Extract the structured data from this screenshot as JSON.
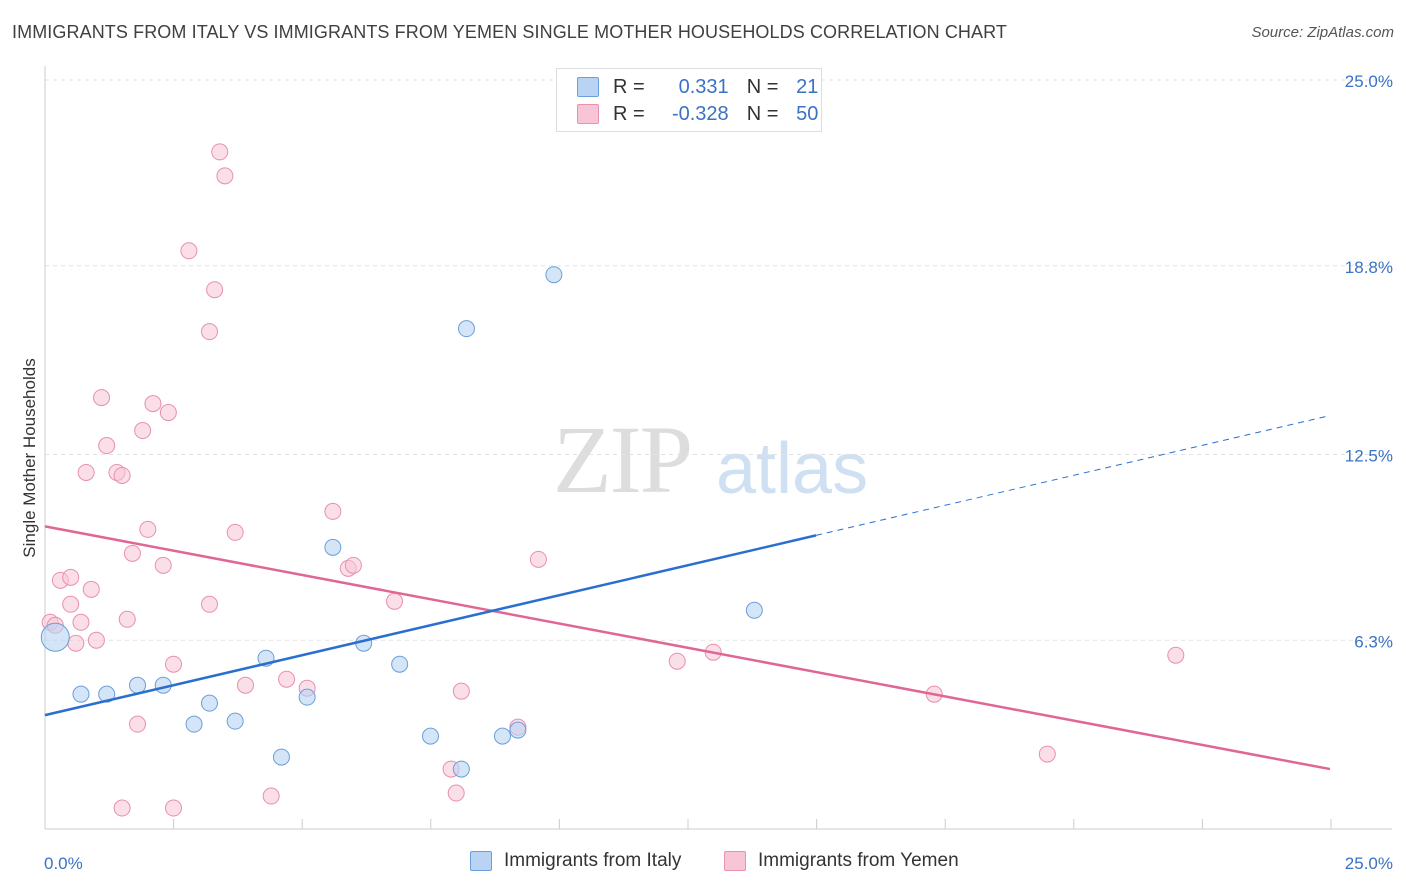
{
  "header": {
    "title": "IMMIGRANTS FROM ITALY VS IMMIGRANTS FROM YEMEN SINGLE MOTHER HOUSEHOLDS CORRELATION CHART",
    "source": "Source: ZipAtlas.com"
  },
  "watermark": {
    "zip": "ZIP",
    "atlas": "atlas"
  },
  "legend": {
    "italy": {
      "r_label": "R =",
      "r_value": "0.331",
      "n_label": "N =",
      "n_value": "21"
    },
    "yemen": {
      "r_label": "R =",
      "r_value": "-0.328",
      "n_label": "N =",
      "n_value": "50"
    }
  },
  "colors": {
    "italy_fill": "#b8d3f3",
    "italy_stroke": "#6a9fd8",
    "italy_line": "#2a6fd0",
    "yemen_fill": "#f7c5d5",
    "yemen_stroke": "#e890ac",
    "yemen_line": "#e06696",
    "axis_text": "#3a72c4",
    "grid": "#e2e2e2"
  },
  "chart_data": {
    "type": "scatter",
    "title": "IMMIGRANTS FROM ITALY VS IMMIGRANTS FROM YEMEN SINGLE MOTHER HOUSEHOLDS CORRELATION CHART",
    "xlabel": "",
    "ylabel": "Single Mother Households",
    "xlim": [
      0,
      25
    ],
    "ylim": [
      0,
      25
    ],
    "x_tick_labels": [
      "0.0%",
      "25.0%"
    ],
    "y_ticks": [
      6.3,
      12.5,
      18.8,
      25.0
    ],
    "y_tick_labels": [
      "6.3%",
      "12.5%",
      "18.8%",
      "25.0%"
    ],
    "grid": "horizontal dashed",
    "legend_position": "bottom",
    "series": [
      {
        "name": "Immigrants from Italy",
        "points": [
          [
            0.2,
            6.4
          ],
          [
            0.7,
            4.5
          ],
          [
            1.2,
            4.5
          ],
          [
            1.8,
            4.8
          ],
          [
            2.3,
            4.8
          ],
          [
            2.9,
            3.5
          ],
          [
            3.2,
            4.2
          ],
          [
            3.7,
            3.6
          ],
          [
            4.3,
            5.7
          ],
          [
            4.6,
            2.4
          ],
          [
            5.1,
            4.4
          ],
          [
            5.6,
            9.4
          ],
          [
            6.2,
            6.2
          ],
          [
            6.9,
            5.5
          ],
          [
            7.5,
            3.1
          ],
          [
            8.1,
            2.0
          ],
          [
            8.2,
            16.7
          ],
          [
            8.9,
            3.1
          ],
          [
            9.2,
            3.3
          ],
          [
            9.9,
            18.5
          ],
          [
            13.8,
            7.3
          ]
        ],
        "trend": {
          "x": [
            0,
            15,
            25
          ],
          "y": [
            3.8,
            9.8,
            13.8
          ],
          "solid_until": 15
        }
      },
      {
        "name": "Immigrants from Yemen",
        "points": [
          [
            0.1,
            6.9
          ],
          [
            0.2,
            6.8
          ],
          [
            0.3,
            8.3
          ],
          [
            0.5,
            8.4
          ],
          [
            0.5,
            7.5
          ],
          [
            0.6,
            6.2
          ],
          [
            0.7,
            6.9
          ],
          [
            0.8,
            11.9
          ],
          [
            0.9,
            8.0
          ],
          [
            1.0,
            6.3
          ],
          [
            1.1,
            14.4
          ],
          [
            1.2,
            12.8
          ],
          [
            1.4,
            11.9
          ],
          [
            1.5,
            11.8
          ],
          [
            1.6,
            7.0
          ],
          [
            1.7,
            9.2
          ],
          [
            1.8,
            3.5
          ],
          [
            1.9,
            13.3
          ],
          [
            2.0,
            10.0
          ],
          [
            2.1,
            14.2
          ],
          [
            2.3,
            8.8
          ],
          [
            2.4,
            13.9
          ],
          [
            2.5,
            5.5
          ],
          [
            3.2,
            16.6
          ],
          [
            3.2,
            7.5
          ],
          [
            3.3,
            18.0
          ],
          [
            3.4,
            22.6
          ],
          [
            3.5,
            21.8
          ],
          [
            3.7,
            9.9
          ],
          [
            3.9,
            4.8
          ],
          [
            4.4,
            1.1
          ],
          [
            4.7,
            5.0
          ],
          [
            5.1,
            4.7
          ],
          [
            5.6,
            10.6
          ],
          [
            5.9,
            8.7
          ],
          [
            6.0,
            8.8
          ],
          [
            6.8,
            7.6
          ],
          [
            7.9,
            2.0
          ],
          [
            8.0,
            1.2
          ],
          [
            8.1,
            4.6
          ],
          [
            9.2,
            3.4
          ],
          [
            9.6,
            9.0
          ],
          [
            2.5,
            0.7
          ],
          [
            2.8,
            19.3
          ],
          [
            12.3,
            5.6
          ],
          [
            13.0,
            5.9
          ],
          [
            17.3,
            4.5
          ],
          [
            19.5,
            2.5
          ],
          [
            22.0,
            5.8
          ],
          [
            1.5,
            0.7
          ]
        ],
        "trend": {
          "x": [
            0,
            25
          ],
          "y": [
            10.1,
            2.0
          ]
        }
      }
    ]
  },
  "bottom_legend": {
    "italy": "Immigrants from Italy",
    "yemen": "Immigrants from Yemen"
  }
}
